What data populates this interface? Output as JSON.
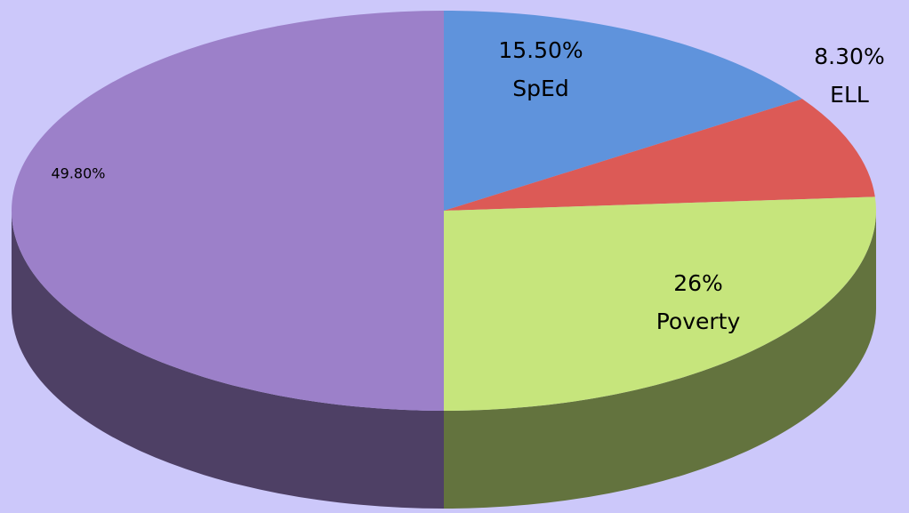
{
  "chart_data": {
    "type": "pie",
    "categories": [
      "SpEd",
      "ELL",
      "Poverty",
      null
    ],
    "values": [
      15.5,
      8.3,
      26,
      49.8
    ],
    "value_labels": [
      "15.50%",
      "8.30%",
      "26%",
      "49.80%"
    ],
    "colors": [
      "#5f93dc",
      "#dc5a56",
      "#c6e57c",
      "#9c80c9"
    ]
  }
}
